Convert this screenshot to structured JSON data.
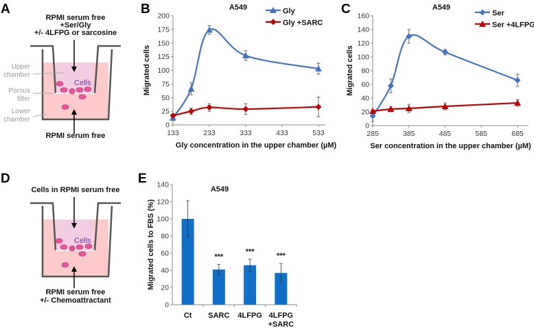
{
  "panels": {
    "a": "A",
    "b": "B",
    "c": "C",
    "d": "D",
    "e": "E"
  },
  "diagram_a": {
    "top_lines": [
      "RPMI serum free",
      "+Ser/Gly",
      "+/- 4LFPG or sarcosine"
    ],
    "upper_chamber": [
      "Upper",
      "chamber"
    ],
    "porous_filter": [
      "Porous",
      "filter"
    ],
    "lower_chamber": [
      "Lower",
      "chamber"
    ],
    "cells": "Cells",
    "bottom": "RPMI serum free"
  },
  "diagram_d": {
    "top": "Cells in RPMI serum free",
    "cells": "Cells",
    "bottom_lines": [
      "RPMI serum free",
      "+/- Chemoattractant"
    ]
  },
  "colors": {
    "blue": "#4472C4",
    "red": "#C00000",
    "bar": "#1070C8",
    "upper": "#F3CDE2",
    "lower": "#FCCACA",
    "wall": "#555555",
    "cell": "#E8559A"
  },
  "chart_data": [
    {
      "id": "b",
      "type": "line",
      "title": "A549",
      "xlabel": "Gly concentration in the upper chamber (µM)",
      "ylabel": "Migrated cells",
      "xlim": [
        133,
        533
      ],
      "ylim": [
        0,
        200
      ],
      "xticks": [
        133,
        233,
        333,
        433,
        533
      ],
      "yticks": [
        0,
        25,
        50,
        75,
        100,
        125,
        150,
        175,
        200
      ],
      "legend": "top-right",
      "series": [
        {
          "name": "Gly",
          "color": "#4472C4",
          "marker": "triangle",
          "x": [
            133,
            183,
            233,
            333,
            533
          ],
          "y": [
            13,
            66,
            174,
            127,
            103
          ],
          "err": [
            5,
            11,
            8,
            9,
            10
          ]
        },
        {
          "name": "Gly +SARC",
          "color": "#C00000",
          "marker": "diamond",
          "x": [
            133,
            183,
            233,
            333,
            533
          ],
          "y": [
            17,
            25,
            32,
            29,
            33
          ],
          "err": [
            3,
            6,
            7,
            10,
            18
          ]
        }
      ]
    },
    {
      "id": "c",
      "type": "line",
      "title": "A549",
      "xlabel": "Ser concentration in the upper chamber (µM)",
      "ylabel": "Migrated cells",
      "xlim": [
        285,
        685
      ],
      "ylim": [
        0,
        160
      ],
      "xticks": [
        285,
        385,
        485,
        585,
        685
      ],
      "yticks": [
        0,
        20,
        40,
        60,
        80,
        100,
        120,
        140,
        160
      ],
      "legend": "top-right",
      "series": [
        {
          "name": "Ser",
          "color": "#4472C4",
          "marker": "diamond",
          "x": [
            285,
            335,
            385,
            485,
            685
          ],
          "y": [
            14,
            58,
            130,
            107,
            66
          ],
          "err": [
            8,
            10,
            10,
            4,
            9
          ]
        },
        {
          "name": "Ser +4LFPG",
          "color": "#C00000",
          "marker": "triangle",
          "x": [
            285,
            335,
            385,
            485,
            685
          ],
          "y": [
            21,
            24,
            25,
            28,
            33
          ],
          "err": [
            2,
            4,
            6,
            5,
            5
          ]
        }
      ]
    },
    {
      "id": "e",
      "type": "bar",
      "title": "A549",
      "xlabel": "",
      "ylabel": "Migrated cells to FBS (%)",
      "ylim": [
        0,
        140
      ],
      "yticks": [
        0,
        20,
        40,
        60,
        80,
        100,
        120,
        140
      ],
      "categories": [
        [
          "Ct"
        ],
        [
          "SARC"
        ],
        [
          "4LFPG"
        ],
        [
          "4LFPG",
          "+SARC"
        ]
      ],
      "values": [
        100,
        41,
        46,
        37
      ],
      "err": [
        21,
        6,
        7,
        11
      ],
      "annotations": [
        "",
        "***",
        "***",
        "***"
      ]
    }
  ]
}
